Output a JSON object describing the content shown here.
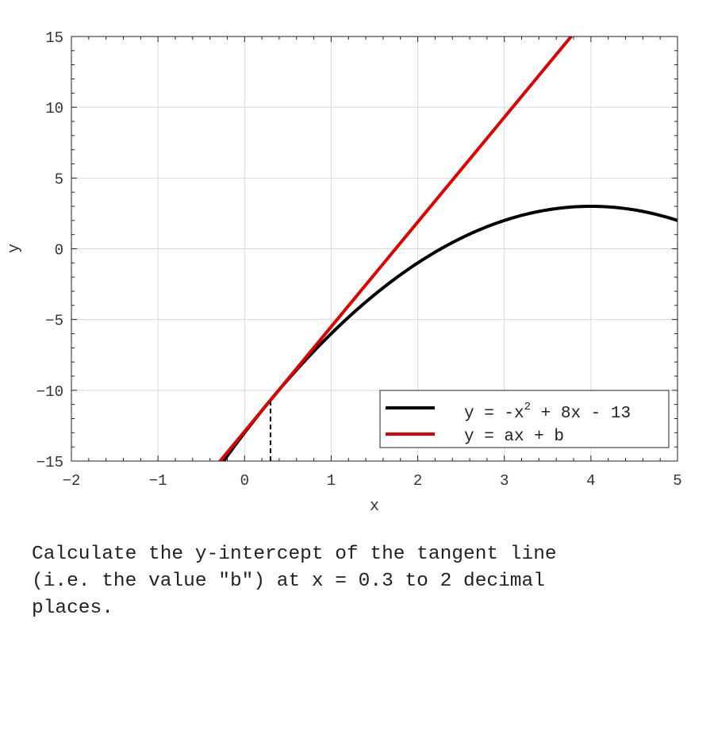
{
  "chart_data": {
    "type": "line",
    "xlabel": "x",
    "ylabel": "y",
    "xlim": [
      -2,
      5
    ],
    "ylim": [
      -15,
      15
    ],
    "xticks": [
      -2,
      -1,
      0,
      1,
      2,
      3,
      4,
      5
    ],
    "yticks": [
      -15,
      -10,
      -5,
      0,
      5,
      10,
      15
    ],
    "grid": true,
    "legend_position": "bottom-right",
    "series": [
      {
        "name": "y = -x^2 + 8x - 13",
        "legend_prefix": "y = -x",
        "legend_sup": "2",
        "legend_suffix": " + 8x - 13",
        "kind": "curve",
        "function": "-x^2 + 8x - 13",
        "color": "#000000"
      },
      {
        "name": "y = ax + b",
        "legend_prefix": "y = ax + b",
        "legend_sup": "",
        "legend_suffix": "",
        "kind": "tangent",
        "tangent_at_x": 0.3,
        "color": "#e00000"
      }
    ],
    "marker": {
      "x": 0.3,
      "y_from": -15,
      "y_to": -10.69,
      "style": "dashed",
      "color": "#000000"
    }
  },
  "question": "Calculate the y-intercept of the tangent line\n(i.e. the value \"b\") at x = 0.3 to 2 decimal\nplaces."
}
